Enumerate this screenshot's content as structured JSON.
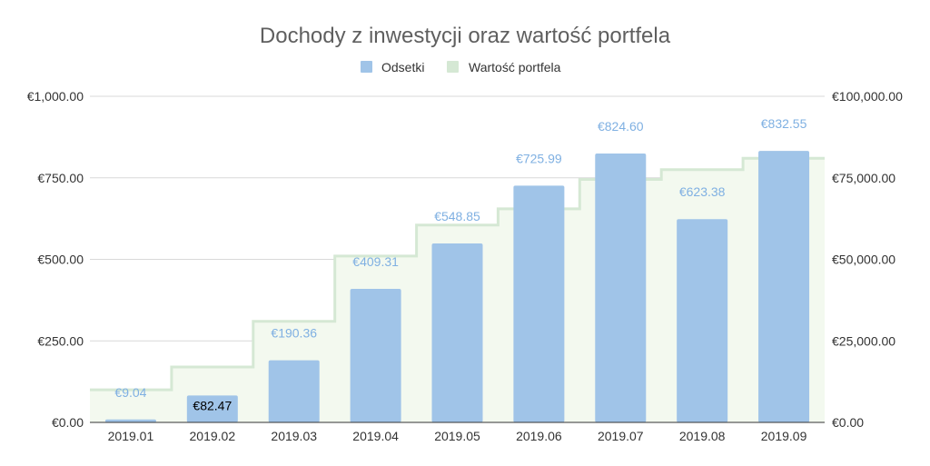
{
  "chart_data": {
    "type": "bar",
    "title": "Dochody z inwestycji oraz wartość portfela",
    "categories": [
      "2019.01",
      "2019.02",
      "2019.03",
      "2019.04",
      "2019.05",
      "2019.06",
      "2019.07",
      "2019.08",
      "2019.09"
    ],
    "series": [
      {
        "name": "Odsetki",
        "type": "bar",
        "axis": "left",
        "color": "#a0c4e8",
        "values": [
          9.04,
          82.47,
          190.36,
          409.31,
          548.85,
          725.99,
          824.6,
          623.38,
          832.55
        ],
        "labels": [
          "€9.04",
          "€82.47",
          "€190.36",
          "€409.31",
          "€548.85",
          "€725.99",
          "€824.60",
          "€623.38",
          "€832.55"
        ]
      },
      {
        "name": "Wartość portfela",
        "type": "stepped-area",
        "axis": "right",
        "color": "#d5e8d4",
        "values": [
          10000,
          17000,
          31000,
          51000,
          60500,
          65500,
          74500,
          77500,
          81000
        ]
      }
    ],
    "y_left": {
      "min": 0,
      "max": 1000,
      "ticks": [
        "€0.00",
        "€250.00",
        "€500.00",
        "€750.00",
        "€1,000.00"
      ]
    },
    "y_right": {
      "min": 0,
      "max": 100000,
      "ticks": [
        "€0.00",
        "€25,000.00",
        "€50,000.00",
        "€75,000.00",
        "€100,000.00"
      ]
    },
    "grid": true,
    "legend_position": "top"
  }
}
